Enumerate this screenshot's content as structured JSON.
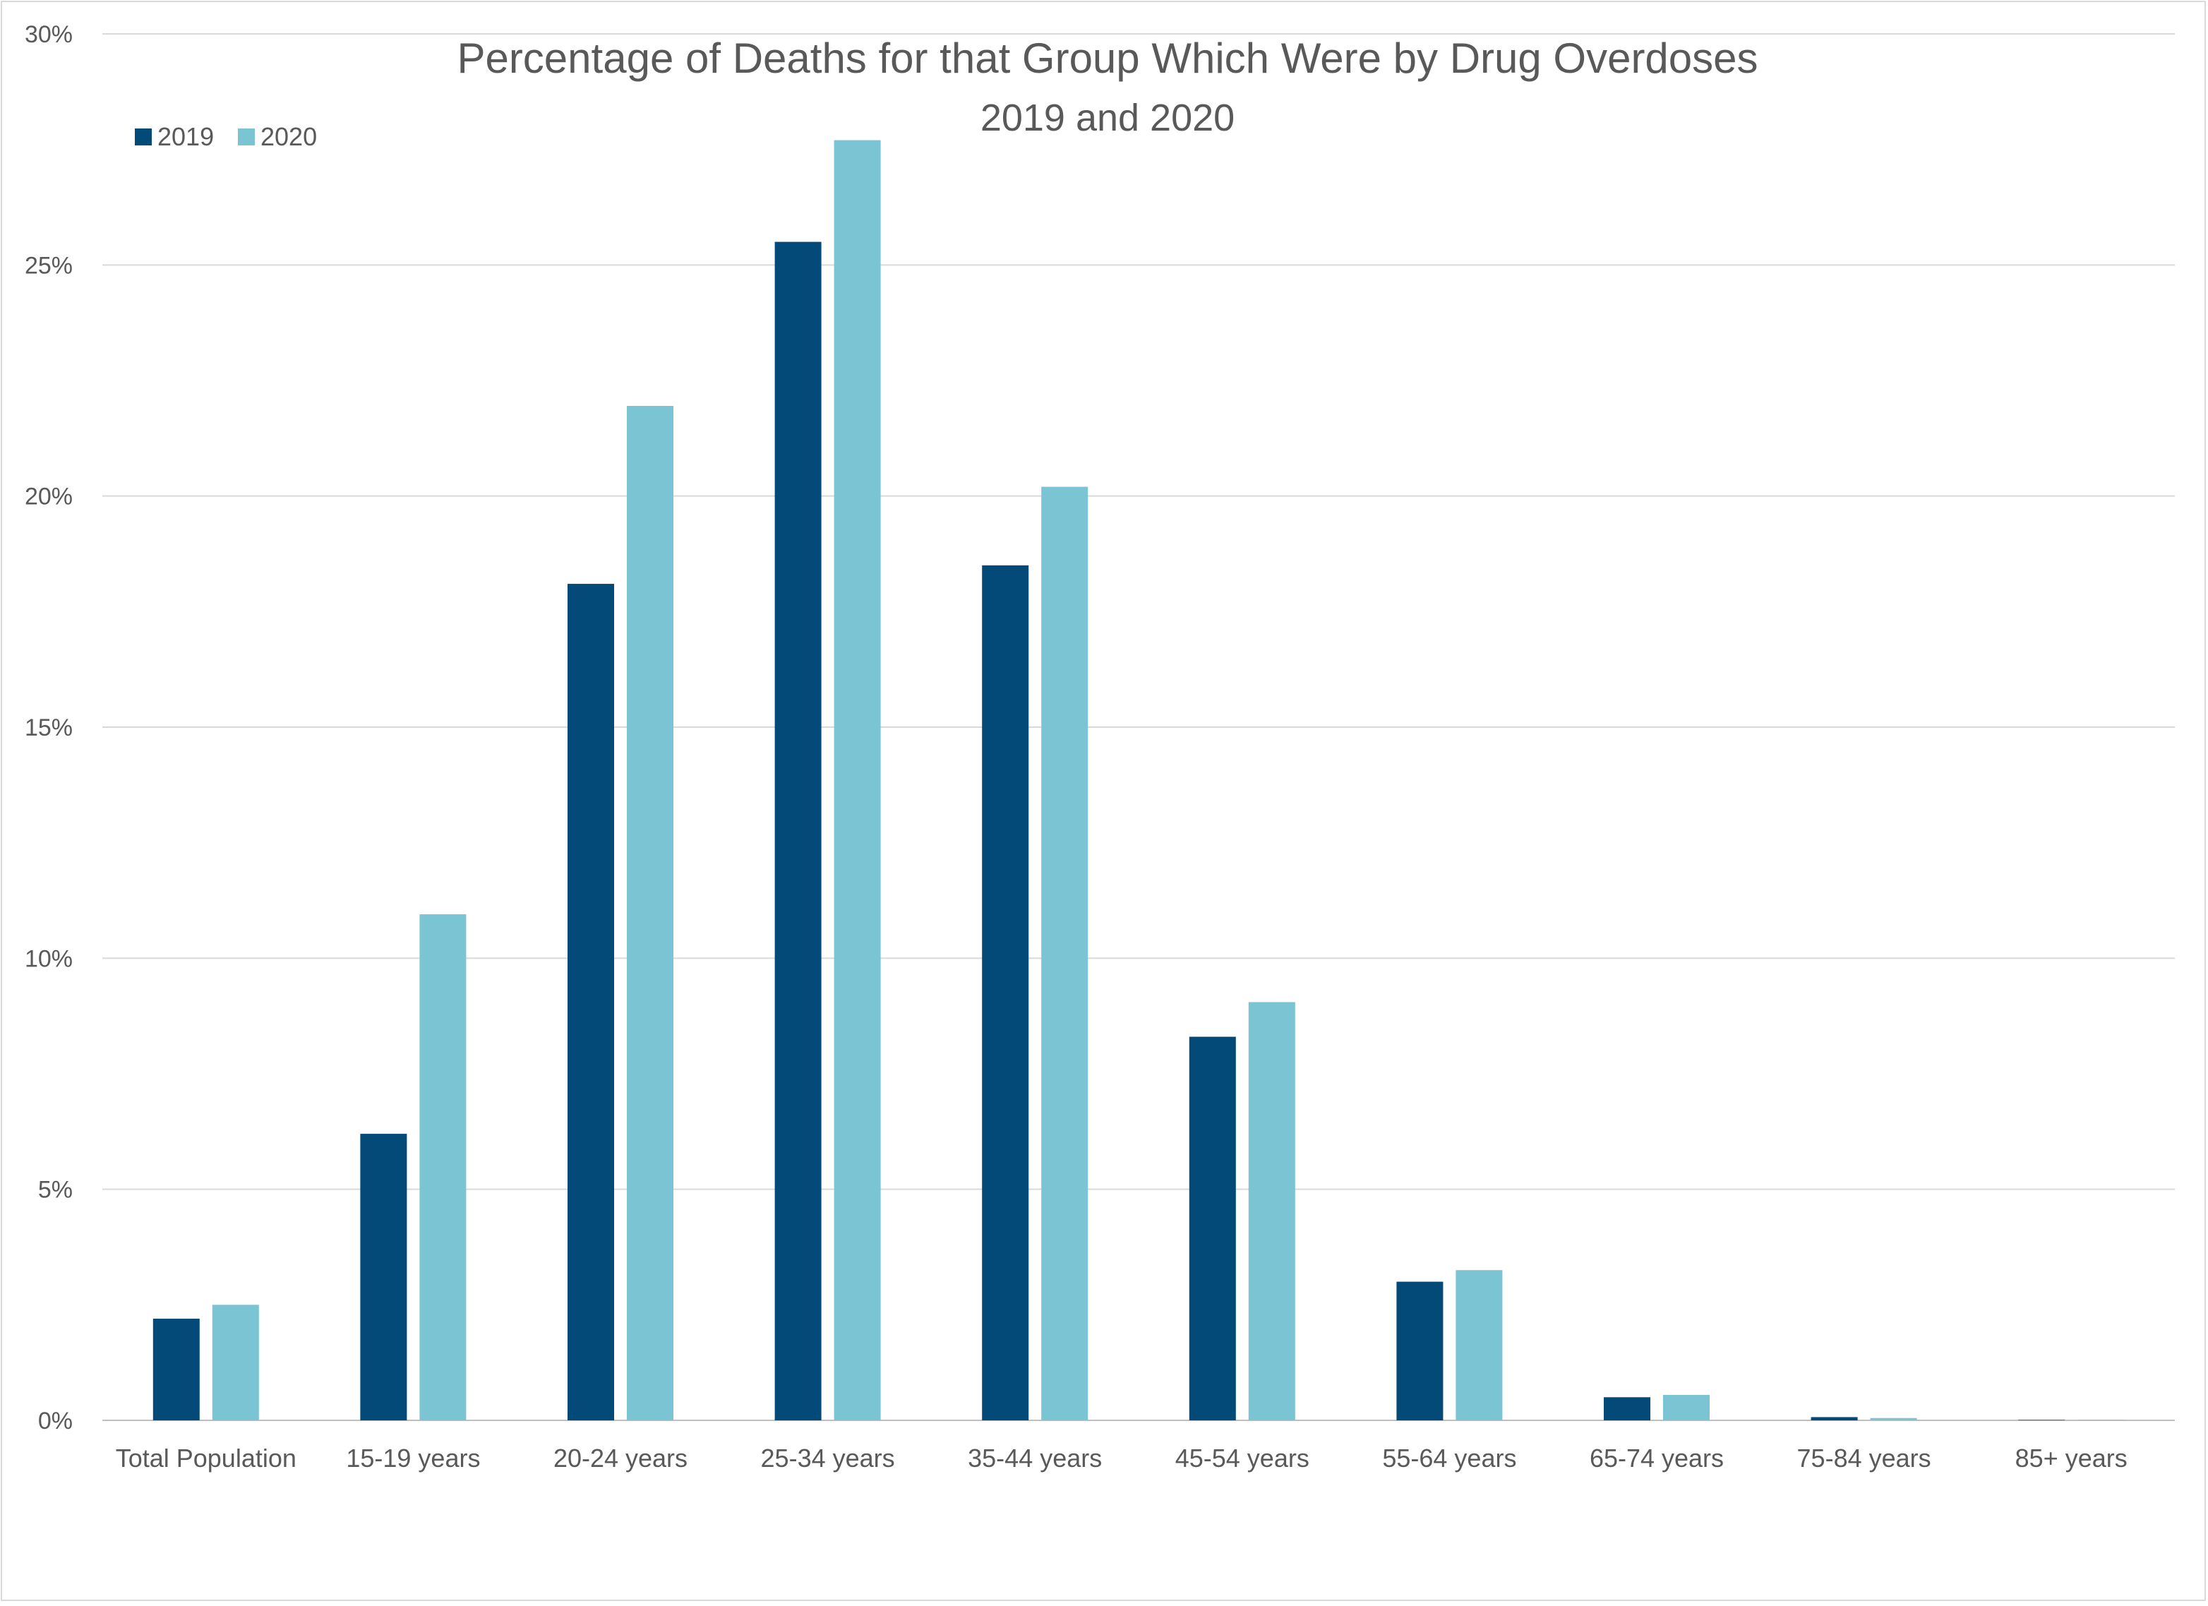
{
  "chart_data": {
    "type": "bar",
    "title": "Percentage of Deaths for that Group Which Were by Drug Overdoses",
    "subtitle": "2019 and 2020",
    "xlabel": "",
    "ylabel": "",
    "ylim": [
      0,
      30
    ],
    "y_ticks": [
      "0%",
      "5%",
      "10%",
      "15%",
      "20%",
      "25%",
      "30%"
    ],
    "y_tick_values": [
      0,
      5,
      10,
      15,
      20,
      25,
      30
    ],
    "grid": true,
    "legend_position": "top-left",
    "categories": [
      "Total Population",
      "15-19 years",
      "20-24 years",
      "25-34 years",
      "35-44 years",
      "45-54 years",
      "55-64 years",
      "65-74 years",
      "75-84 years",
      "85+ years"
    ],
    "series": [
      {
        "name": "2019",
        "color": "#044A79",
        "values": [
          2.2,
          6.2,
          18.1,
          25.5,
          18.5,
          8.3,
          3.0,
          0.5,
          0.07,
          0.01
        ]
      },
      {
        "name": "2020",
        "color": "#7AC4D3",
        "values": [
          2.5,
          10.95,
          21.95,
          27.7,
          20.2,
          9.05,
          3.25,
          0.55,
          0.05,
          0.01
        ]
      }
    ]
  }
}
